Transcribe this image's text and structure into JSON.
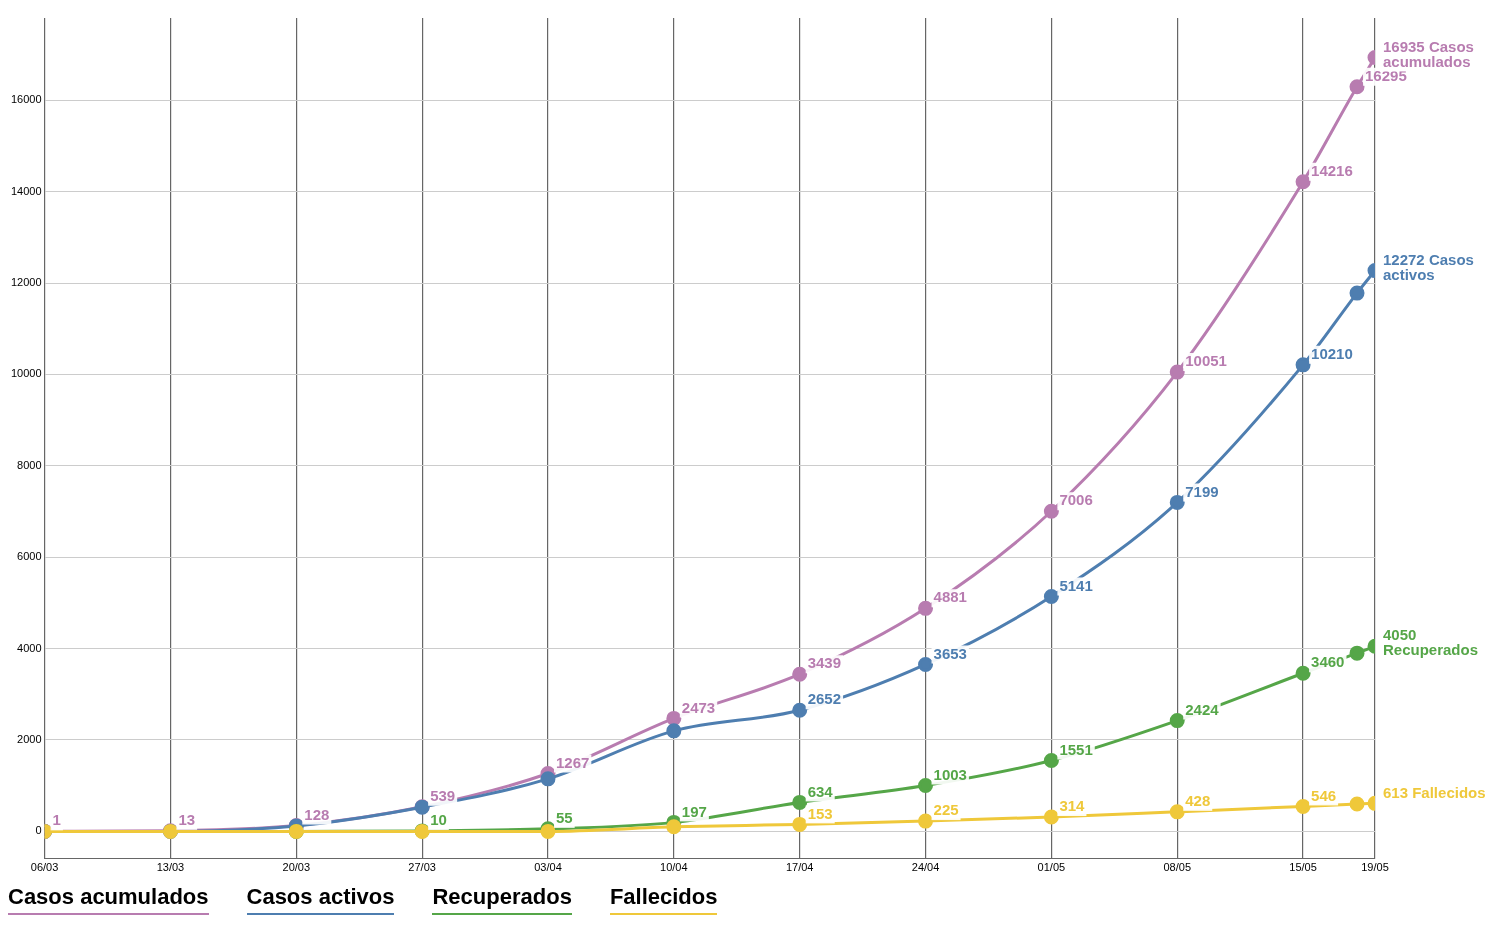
{
  "chart_data": {
    "type": "line",
    "x": [
      "--03-06",
      "--03-13",
      "--03-20",
      "--03-27",
      "--04-03",
      "--04-10",
      "--04-17",
      "--04-24",
      "--05-01",
      "--05-08",
      "--05-15",
      "--05-18",
      "--05-19"
    ],
    "series": [
      {
        "name": "Casos acumulados",
        "color": "#b87cb0",
        "values": [
          1,
          13,
          128,
          539,
          1267,
          2473,
          3439,
          4881,
          7006,
          10051,
          14216,
          16295,
          16935
        ],
        "value_labels": [
          "1",
          "13",
          "128",
          "539",
          "1267",
          "2473",
          "3439",
          "4881",
          "7006",
          "10051",
          "14216",
          "16295",
          "16935 Casos acumulados"
        ]
      },
      {
        "name": "Casos activos",
        "color": "#4e7eb0",
        "values": [
          0,
          0,
          120,
          530,
          1150,
          2200,
          2652,
          3653,
          5141,
          7199,
          10210,
          11780,
          12272
        ],
        "value_labels": [
          null,
          null,
          null,
          null,
          null,
          null,
          "2652",
          "3653",
          "5141",
          "7199",
          "10210",
          null,
          "12272 Casos activos"
        ]
      },
      {
        "name": "Recuperados",
        "color": "#55a648",
        "values": [
          null,
          null,
          0,
          10,
          55,
          197,
          634,
          1003,
          1551,
          2424,
          3460,
          3900,
          4050
        ],
        "value_labels": [
          null,
          null,
          null,
          "10",
          "55",
          "197",
          "634",
          "1003",
          "1551",
          "2424",
          "3460",
          null,
          "4050 Recuperados"
        ]
      },
      {
        "name": "Fallecidos",
        "color": "#efc83a",
        "values": [
          0,
          0,
          0,
          0,
          0,
          100,
          153,
          225,
          314,
          428,
          546,
          600,
          613
        ],
        "value_labels": [
          null,
          null,
          null,
          null,
          null,
          null,
          "153",
          "225",
          "314",
          "428",
          "546",
          null,
          "613 Fallecidos"
        ]
      }
    ],
    "xlim": [
      "--03-06",
      "--05-19"
    ],
    "xticks": [
      {
        "value": "--03-06",
        "label": "06/03"
      },
      {
        "value": "--03-13",
        "label": "13/03"
      },
      {
        "value": "--03-20",
        "label": "20/03"
      },
      {
        "value": "--03-27",
        "label": "27/03"
      },
      {
        "value": "--04-03",
        "label": "03/04"
      },
      {
        "value": "--04-10",
        "label": "10/04"
      },
      {
        "value": "--04-17",
        "label": "17/04"
      },
      {
        "value": "--04-24",
        "label": "24/04"
      },
      {
        "value": "--05-01",
        "label": "01/05"
      },
      {
        "value": "--05-08",
        "label": "08/05"
      },
      {
        "value": "--05-15",
        "label": "15/05"
      },
      {
        "value": "--05-19",
        "label": "19/05"
      }
    ],
    "ylim": [
      -600,
      17800
    ],
    "yticks": [
      0,
      2000,
      4000,
      6000,
      8000,
      10000,
      12000,
      14000,
      16000
    ],
    "grid": true,
    "legend": "bottom",
    "marker": "circle",
    "line_style": "solid"
  }
}
